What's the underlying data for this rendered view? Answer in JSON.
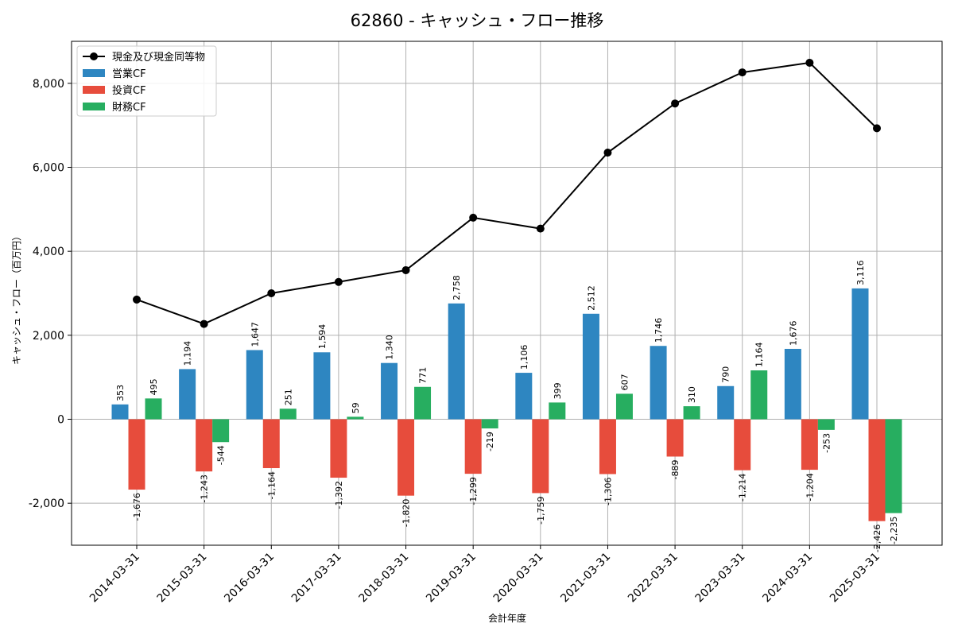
{
  "chart_data": {
    "type": "bar",
    "title": "62860 - キャッシュ・フロー推移",
    "xlabel": "会計年度",
    "ylabel": "キャッシュ・フロー（百万円）",
    "ylim": [
      -3000,
      9000
    ],
    "yticks": [
      -2000,
      0,
      2000,
      4000,
      6000,
      8000
    ],
    "ytick_labels": [
      "-2,000",
      "0",
      "2,000",
      "4,000",
      "6,000",
      "8,000"
    ],
    "grid": true,
    "legend_position": "top-left",
    "categories": [
      "2014-03-31",
      "2015-03-31",
      "2016-03-31",
      "2017-03-31",
      "2018-03-31",
      "2019-03-31",
      "2020-03-31",
      "2021-03-31",
      "2022-03-31",
      "2023-03-31",
      "2024-03-31",
      "2025-03-31"
    ],
    "series": [
      {
        "name": "営業CF",
        "type": "bar",
        "color": "#2e86c1",
        "values": [
          353,
          1194,
          1647,
          1594,
          1340,
          2758,
          1106,
          2512,
          1746,
          790,
          1676,
          3116
        ],
        "labels": [
          "353",
          "1,194",
          "1,647",
          "1,594",
          "1,340",
          "2,758",
          "1,106",
          "2,512",
          "1,746",
          "790",
          "1,676",
          "3,116"
        ]
      },
      {
        "name": "投資CF",
        "type": "bar",
        "color": "#e74c3c",
        "values": [
          -1676,
          -1243,
          -1164,
          -1392,
          -1820,
          -1299,
          -1759,
          -1306,
          -889,
          -1214,
          -1204,
          -2426
        ],
        "labels": [
          "-1,676",
          "-1,243",
          "-1,164",
          "-1,392",
          "-1,820",
          "-1,299",
          "-1,759",
          "-1,306",
          "-889",
          "-1,214",
          "-1,204",
          "-2,426"
        ]
      },
      {
        "name": "財務CF",
        "type": "bar",
        "color": "#27ae60",
        "values": [
          495,
          -544,
          251,
          59,
          771,
          -219,
          399,
          607,
          310,
          1164,
          -253,
          -2235
        ],
        "labels": [
          "495",
          "-544",
          "251",
          "59",
          "771",
          "-219",
          "399",
          "607",
          "310",
          "1,164",
          "-253",
          "-2,235"
        ]
      },
      {
        "name": "現金及び現金同等物",
        "type": "line",
        "color": "#000000",
        "values": [
          2850,
          2270,
          3000,
          3270,
          3550,
          4800,
          4540,
          6350,
          7520,
          8260,
          8490,
          6930
        ]
      }
    ]
  }
}
